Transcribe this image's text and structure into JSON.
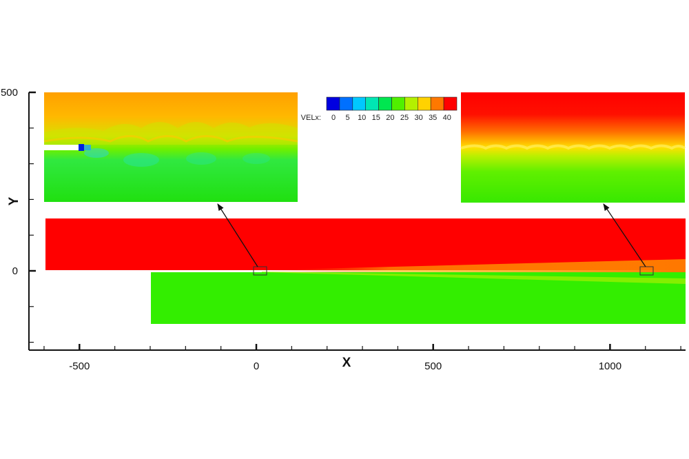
{
  "chart_data": {
    "type": "heatmap",
    "title": "",
    "xlabel": "X",
    "ylabel": "Y",
    "xlim": [
      -620,
      1210
    ],
    "ylim": [
      -210,
      500
    ],
    "x_ticks": [
      -500,
      0,
      500,
      1000
    ],
    "y_ticks": [
      0,
      500
    ],
    "x_minor_step": 100,
    "y_minor_step": 100,
    "colorbar": {
      "variable_label": "VELx:",
      "ticks": [
        0,
        5,
        10,
        15,
        20,
        25,
        30,
        35,
        40
      ],
      "colors": [
        "#0000e0",
        "#0070ff",
        "#00c8ff",
        "#00e6b4",
        "#00e650",
        "#50f000",
        "#b4f000",
        "#ffd200",
        "#ff7800",
        "#ff0000"
      ]
    },
    "regions": [
      {
        "name": "upper stream",
        "value": 40,
        "x_range": [
          -595,
          1215
        ],
        "y_range": [
          5,
          150
        ]
      },
      {
        "name": "lower stream",
        "value": 22,
        "x_range": [
          -300,
          1215
        ],
        "y_range": [
          -150,
          0
        ]
      }
    ],
    "zoom_boxes": [
      {
        "name": "near-field zoom",
        "x_center": 10
      },
      {
        "name": "far-field zoom",
        "x_center": 1100
      }
    ],
    "grid": false,
    "legend": "top-center colorbar"
  }
}
